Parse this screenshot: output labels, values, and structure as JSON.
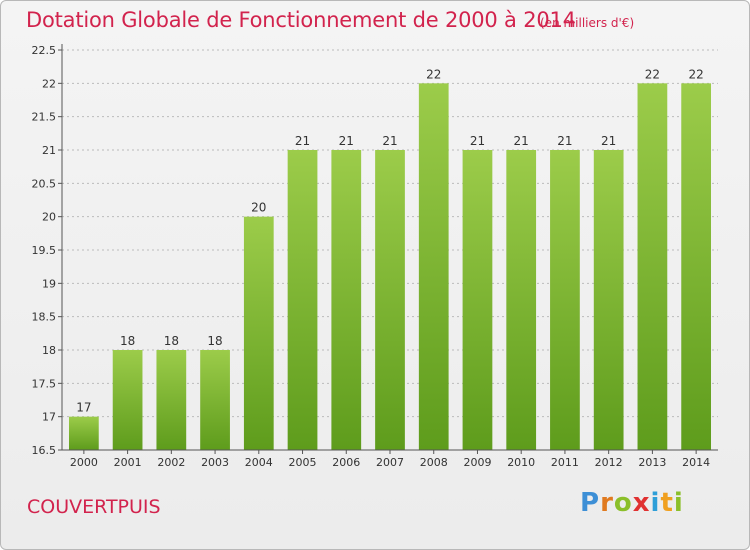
{
  "header": {
    "title": "Dotation Globale de Fonctionnement de 2000 à 2014",
    "unit": "(en milliers d'€)"
  },
  "footer": {
    "commune": "COUVERTPUIS",
    "logo": {
      "letters": [
        "P",
        "r",
        "o",
        "x",
        "i",
        "t",
        "i"
      ],
      "colors": [
        "#3d8fd6",
        "#e07a1f",
        "#8bbf2a",
        "#e03131",
        "#2e9fd8",
        "#f0a020",
        "#8bbf2a"
      ]
    }
  },
  "colors": {
    "bar_top": "#9ccc4a",
    "bar_bottom": "#5e9c1c",
    "grid": "#bbbbbb",
    "title": "#d2234d"
  },
  "chart_data": {
    "type": "bar",
    "title": "Dotation Globale de Fonctionnement de 2000 à 2014",
    "subtitle": "(en milliers d'€)",
    "categories": [
      "2000",
      "2001",
      "2002",
      "2003",
      "2004",
      "2005",
      "2006",
      "2007",
      "2008",
      "2009",
      "2010",
      "2011",
      "2012",
      "2013",
      "2014"
    ],
    "values": [
      17,
      18,
      18,
      18,
      20,
      21,
      21,
      21,
      22,
      21,
      21,
      21,
      21,
      22,
      22
    ],
    "ylim": [
      16.5,
      22.5
    ],
    "yticks": [
      "16.5",
      "17",
      "17.5",
      "18",
      "18.5",
      "19",
      "19.5",
      "20",
      "20.5",
      "21",
      "21.5",
      "22",
      "22.5"
    ],
    "grid": true,
    "legend": "none"
  }
}
